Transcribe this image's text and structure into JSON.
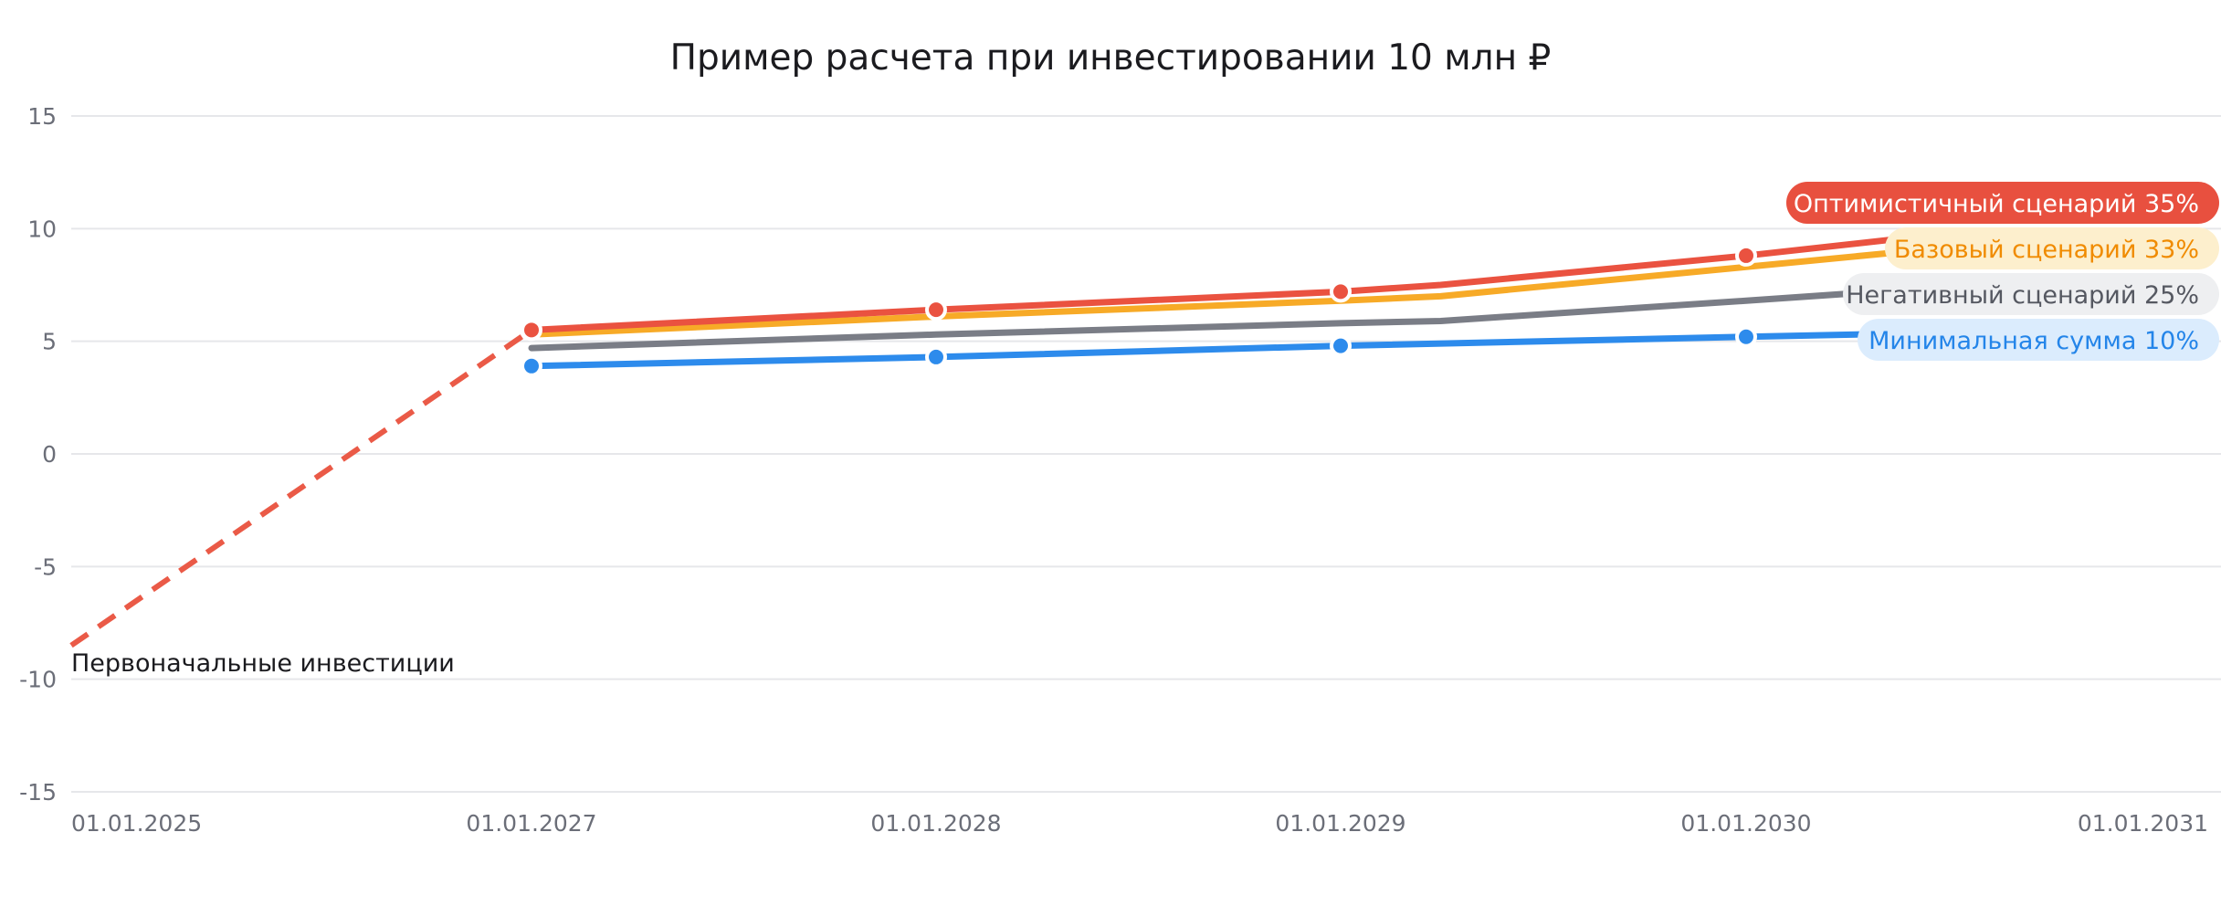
{
  "chart_data": {
    "type": "line",
    "title": "Пример расчета при инвестировании 10 млн ₽",
    "xlabel": "",
    "ylabel": "",
    "ylim": [
      -15,
      15
    ],
    "yticks": [
      15,
      10,
      5,
      0,
      -5,
      -10,
      -15
    ],
    "xlim": [
      "2025-01-01",
      "2031-01-01"
    ],
    "xticks": [
      {
        "date": "2025-01-01",
        "label": "01.01.2025"
      },
      {
        "date": "2027-01-01",
        "label": "01.01.2027"
      },
      {
        "date": "2028-01-01",
        "label": "01.01.2028"
      },
      {
        "date": "2029-01-01",
        "label": "01.01.2029"
      },
      {
        "date": "2030-01-01",
        "label": "01.01.2030"
      },
      {
        "date": "2031-01-01",
        "label": "01.01.2031"
      }
    ],
    "grid": true,
    "initial_investment": {
      "label": "Первоначальные инвестиции",
      "color": "#ea5a47",
      "dashed": true,
      "points": [
        {
          "x": "2025-01-01",
          "y": -8.5
        },
        {
          "x": "2027-01-01",
          "y": 5.5
        }
      ]
    },
    "series": [
      {
        "label": "Оптимистичный сценарий 35%",
        "color": "#ea5240",
        "label_bg": "#e8503f",
        "label_fg": "#ffffff",
        "markers": true,
        "points": [
          {
            "x": "2027-01-01",
            "y": 5.5
          },
          {
            "x": "2028-01-01",
            "y": 6.4
          },
          {
            "x": "2029-01-01",
            "y": 7.2
          },
          {
            "x": "2029-04-01",
            "y": 7.5
          },
          {
            "x": "2030-01-01",
            "y": 8.8
          },
          {
            "x": "2030-05-15",
            "y": 9.6
          }
        ]
      },
      {
        "label": "Базовый сценарий 33%",
        "color": "#f7aa27",
        "label_bg": "#fdefcd",
        "label_fg": "#f08b00",
        "markers": false,
        "points": [
          {
            "x": "2027-01-01",
            "y": 5.3
          },
          {
            "x": "2028-01-01",
            "y": 6.1
          },
          {
            "x": "2029-01-01",
            "y": 6.8
          },
          {
            "x": "2029-04-01",
            "y": 7.0
          },
          {
            "x": "2030-01-01",
            "y": 8.3
          },
          {
            "x": "2030-05-15",
            "y": 9.0
          }
        ]
      },
      {
        "label": "Негативный сценарий 25%",
        "color": "#7a7d86",
        "label_bg": "#eeeff1",
        "label_fg": "#555861",
        "markers": false,
        "points": [
          {
            "x": "2027-01-01",
            "y": 4.7
          },
          {
            "x": "2028-01-01",
            "y": 5.3
          },
          {
            "x": "2029-01-01",
            "y": 5.8
          },
          {
            "x": "2029-04-01",
            "y": 5.9
          },
          {
            "x": "2030-01-01",
            "y": 6.8
          },
          {
            "x": "2030-05-15",
            "y": 7.3
          }
        ]
      },
      {
        "label": "Минимальная сумма 10%",
        "color": "#2d8bec",
        "label_bg": "#dbecfd",
        "label_fg": "#2485e9",
        "markers": true,
        "points": [
          {
            "x": "2027-01-01",
            "y": 3.9
          },
          {
            "x": "2028-01-01",
            "y": 4.3
          },
          {
            "x": "2029-01-01",
            "y": 4.8
          },
          {
            "x": "2030-01-01",
            "y": 5.2
          },
          {
            "x": "2030-05-15",
            "y": 5.35
          }
        ]
      }
    ],
    "legend": "right, inline labels"
  }
}
